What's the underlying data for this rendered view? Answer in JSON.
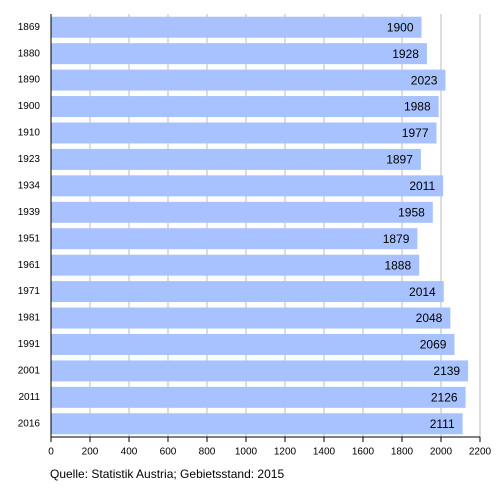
{
  "chart_data": {
    "type": "barh",
    "categories": [
      "1869",
      "1880",
      "1890",
      "1900",
      "1910",
      "1923",
      "1934",
      "1939",
      "1951",
      "1961",
      "1971",
      "1981",
      "1991",
      "2001",
      "2011",
      "2016"
    ],
    "values": [
      1900,
      1928,
      2023,
      1988,
      1977,
      1897,
      2011,
      1958,
      1879,
      1888,
      2014,
      2048,
      2069,
      2139,
      2126,
      2111
    ],
    "color": "#a8c2ff",
    "xlim": [
      0,
      2200
    ],
    "xticks": [
      0,
      200,
      400,
      600,
      800,
      1000,
      1200,
      1400,
      1600,
      1800,
      2000,
      2200
    ],
    "grid": true,
    "note": "Quelle: Statistik Austria; Gebietsstand: 2015"
  }
}
